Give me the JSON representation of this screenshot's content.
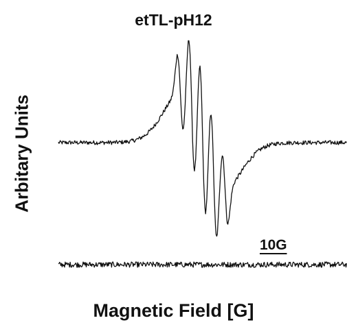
{
  "chart_data": {
    "type": "line",
    "title": "etTL-pH12",
    "xlabel": "Magnetic Field [G]",
    "ylabel": "Arbitary Units",
    "grid": false,
    "legend": "none",
    "axes_visible": false,
    "scale_bar": {
      "label": "10G",
      "gauss": 10
    },
    "series": [
      {
        "role": "upper",
        "baseline": 0,
        "noise_amplitude": 3,
        "signal": "first-derivative hyperfine multiplet",
        "hyperfine_lines": 5,
        "x_range_gauss": [
          -42,
          42
        ],
        "signal_range_gauss": [
          -10,
          11
        ],
        "peak_max": 150,
        "peak_min": -138
      },
      {
        "role": "lower",
        "baseline": 0,
        "noise_amplitude": 4,
        "signal": "none",
        "x_range_gauss": [
          -42,
          42
        ]
      }
    ],
    "line_color": "#111111"
  }
}
